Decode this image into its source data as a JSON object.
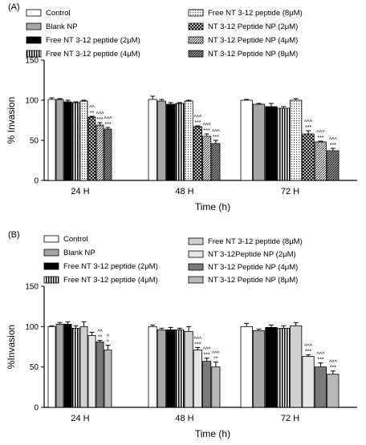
{
  "chart_data": [
    {
      "panel_label": "(A)",
      "type": "bar",
      "ylabel": "% Invasion",
      "xlabel": "Time (h)",
      "ylim": [
        0,
        150
      ],
      "yticks": [
        "0",
        "50",
        "100",
        "150"
      ],
      "categories": [
        "24 H",
        "48 H",
        "72 H"
      ],
      "legend": [
        "Control",
        "Blank NP",
        "Free NT 3-12 peptide (2μM)",
        "Free NT 3-12 peptide (4μM)",
        "Free NT 3-12 peptide (8μM)",
        "NT 3-12 Peptide NP (2μM)",
        "NT 3-12 Peptide NP (4μM)",
        "NT 3-12 Peptide NP (8μM)"
      ],
      "series": [
        {
          "name": "Control",
          "values": [
            101,
            101,
            100
          ],
          "errors": [
            2,
            4,
            1
          ]
        },
        {
          "name": "Blank NP",
          "values": [
            101,
            99,
            95
          ],
          "errors": [
            1,
            2,
            1
          ]
        },
        {
          "name": "Free NT 3-12 peptide (2μM)",
          "values": [
            98,
            95,
            92
          ],
          "errors": [
            2,
            2,
            4
          ]
        },
        {
          "name": "Free NT 3-12 peptide (4μM)",
          "values": [
            97,
            96,
            90
          ],
          "errors": [
            1,
            1,
            2
          ]
        },
        {
          "name": "Free NT 3-12 peptide (8μM)",
          "values": [
            99,
            99,
            100
          ],
          "errors": [
            1,
            1,
            2
          ]
        },
        {
          "name": "NT 3-12 Peptide NP (2μM)",
          "values": [
            79,
            67,
            58
          ],
          "errors": [
            1,
            1,
            4
          ]
        },
        {
          "name": "NT 3-12 Peptide NP (4μM)",
          "values": [
            69,
            55,
            48
          ],
          "errors": [
            3,
            3,
            1
          ]
        },
        {
          "name": "NT 3-12 Peptide NP (8μM)",
          "values": [
            64,
            46,
            37
          ],
          "errors": [
            2,
            4,
            3
          ]
        }
      ],
      "significance": [
        [
          "",
          "",
          "",
          "",
          "",
          "^^\n**",
          "^^^\n***",
          "^^^\n***"
        ],
        [
          "",
          "",
          "",
          "",
          "",
          "^^^\n***",
          "^^^\n***",
          "^^^\n***"
        ],
        [
          "",
          "",
          "",
          "",
          "",
          "^^^\n***",
          "^^^\n***",
          "^^^\n***"
        ]
      ]
    },
    {
      "panel_label": "(B)",
      "type": "bar",
      "ylabel": "%Invasion",
      "xlabel": "Time (h)",
      "ylim": [
        0,
        150
      ],
      "yticks": [
        "0",
        "50",
        "100",
        "150"
      ],
      "categories": [
        "24 H",
        "48 H",
        "72 H"
      ],
      "legend": [
        "Control",
        "Blank NP",
        "Free NT 3-12 peptide (2μM)",
        "Free NT 3-12 peptide (4μM)",
        "Free NT 3-12 peptide (8μM)",
        "NT 3-12Peptide NP (2μM)",
        "NT 3-12 Peptide NP (4μM)",
        "NT 3-12 Peptide NP (8μM)"
      ],
      "series": [
        {
          "name": "Control",
          "values": [
            100,
            100,
            100
          ],
          "errors": [
            1,
            2,
            4
          ]
        },
        {
          "name": "Blank NP",
          "values": [
            103,
            96,
            95
          ],
          "errors": [
            2,
            2,
            2
          ]
        },
        {
          "name": "Free NT 3-12 peptide (2μM)",
          "values": [
            103,
            96,
            99
          ],
          "errors": [
            3,
            3,
            3
          ]
        },
        {
          "name": "Free NT 3-12 peptide (4μM)",
          "values": [
            98,
            96,
            98
          ],
          "errors": [
            3,
            2,
            3
          ]
        },
        {
          "name": "Free NT 3-12 peptide (8μM)",
          "values": [
            100,
            94,
            101
          ],
          "errors": [
            6,
            6,
            4
          ]
        },
        {
          "name": "NT 3-12Peptide NP (2μM)",
          "values": [
            89,
            71,
            63
          ],
          "errors": [
            4,
            3,
            2
          ]
        },
        {
          "name": "NT 3-12 Peptide NP (4μM)",
          "values": [
            81,
            57,
            50
          ],
          "errors": [
            2,
            4,
            5
          ]
        },
        {
          "name": "NT 3-12 Peptide NP (8μM)",
          "values": [
            71,
            50,
            41
          ],
          "errors": [
            6,
            6,
            4
          ]
        }
      ],
      "significance": [
        [
          "",
          "",
          "",
          "",
          "",
          "",
          "^^\n**",
          "^\n*"
        ],
        [
          "",
          "",
          "",
          "",
          "",
          "^^^\n***",
          "^^^\n***",
          "^^^\n**"
        ],
        [
          "",
          "",
          "",
          "",
          "",
          "^^^\n***",
          "^^^\n***",
          "^^^\n***"
        ]
      ]
    }
  ]
}
